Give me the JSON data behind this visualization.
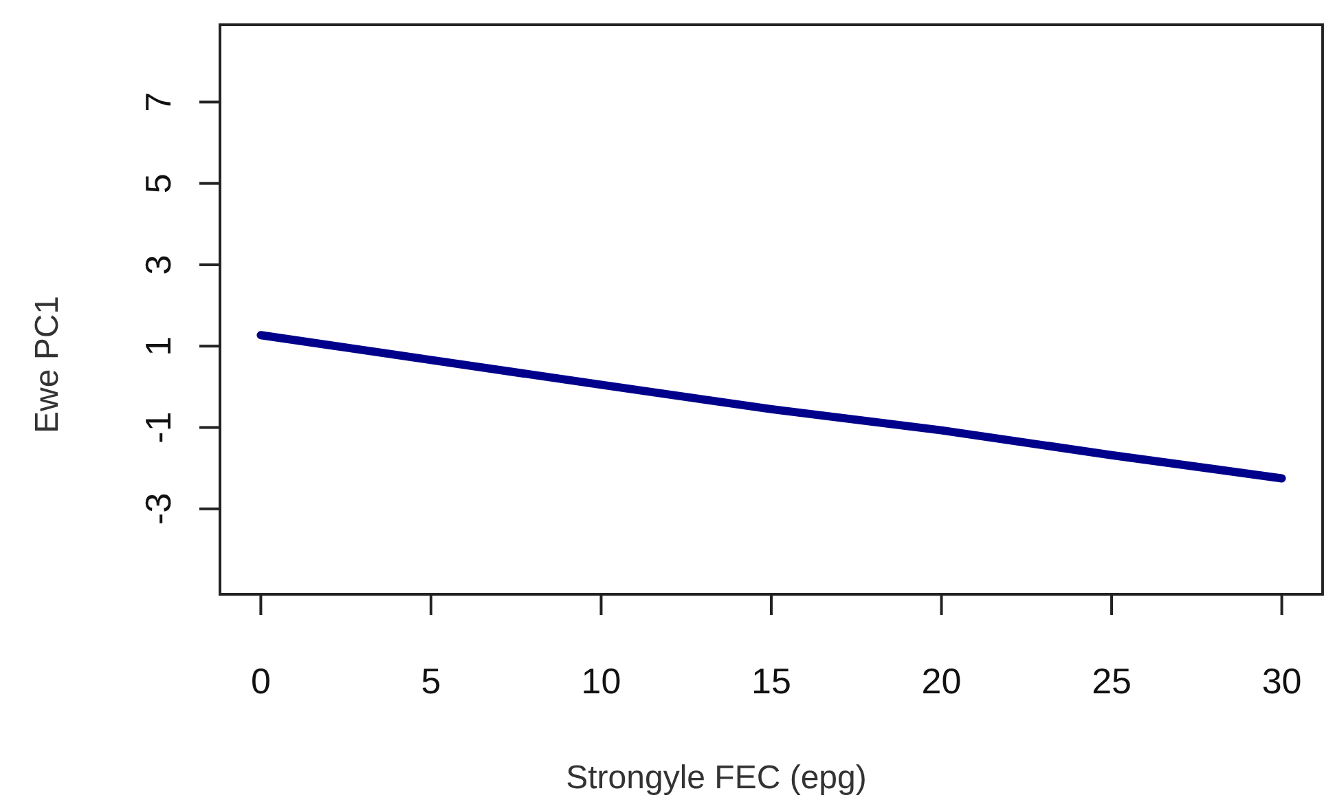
{
  "chart_data": {
    "type": "line",
    "xlabel": "Strongyle FEC (epg)",
    "ylabel": "Ewe PC1",
    "x": [
      0,
      5,
      10,
      15,
      20,
      25,
      30
    ],
    "series": [
      {
        "color": "#00008b",
        "values": [
          1.27,
          0.66,
          0.05,
          -0.55,
          -1.07,
          -1.68,
          -2.25
        ]
      }
    ],
    "xlim": [
      -1.2,
      31.2
    ],
    "ylim": [
      -5.1,
      8.9
    ],
    "xticks": [
      0,
      5,
      10,
      15,
      20,
      25,
      30
    ],
    "yticks": [
      -3,
      -1,
      1,
      3,
      5,
      7
    ],
    "grid": false,
    "marker": "none",
    "line_style": "solid"
  }
}
